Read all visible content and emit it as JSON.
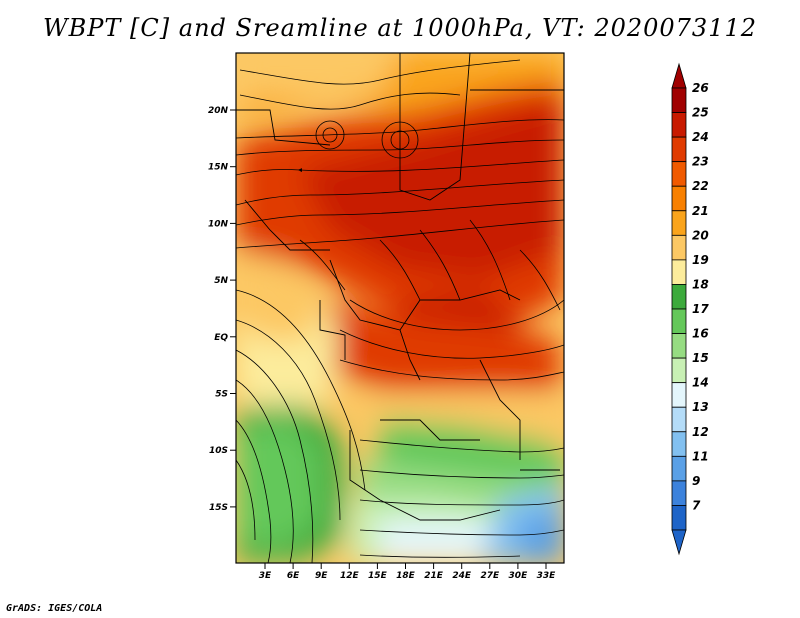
{
  "title": "WBPT [C] and Sreamline at 1000hPa, VT: 2020073112",
  "footer": "GrADS: IGES/COLA",
  "map": {
    "lat_range": [
      -20,
      24
    ],
    "lon_range": [
      0,
      35
    ],
    "lat_ticks": [
      "20N",
      "15N",
      "10N",
      "5N",
      "EQ",
      "5S",
      "10S",
      "15S"
    ],
    "lon_ticks": [
      "3E",
      "6E",
      "9E",
      "12E",
      "15E",
      "18E",
      "21E",
      "24E",
      "27E",
      "30E",
      "33E"
    ]
  },
  "colorbar": {
    "labels": [
      "26",
      "25",
      "24",
      "23",
      "22",
      "21",
      "20",
      "19",
      "18",
      "17",
      "16",
      "15",
      "14",
      "13",
      "12",
      "11",
      "9",
      "7"
    ],
    "colors": [
      "#a00000",
      "#c81a00",
      "#e03b00",
      "#f05a00",
      "#f88000",
      "#faa41c",
      "#fcc864",
      "#fcec9c",
      "#3caa3c",
      "#64c85a",
      "#96dc82",
      "#c8f0b4",
      "#e4f6fc",
      "#b4dcf8",
      "#82c0f0",
      "#5aa0e6",
      "#3c82dc",
      "#1e64c8"
    ]
  }
}
